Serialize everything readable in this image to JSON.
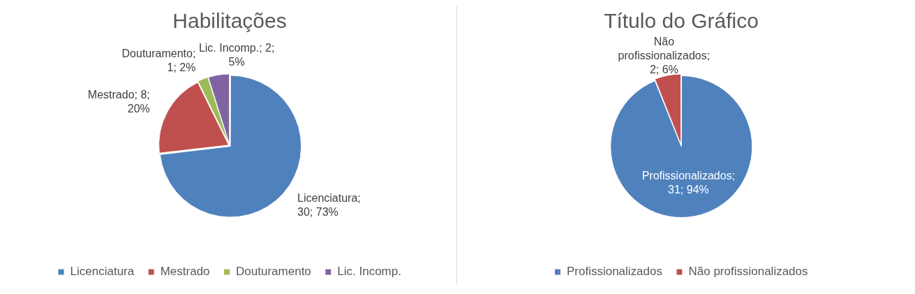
{
  "chart_data": [
    {
      "type": "pie",
      "title": "Habilitações",
      "categories": [
        "Licenciatura",
        "Mestrado",
        "Douturamento",
        "Lic. Incomp."
      ],
      "values": [
        30,
        8,
        1,
        2
      ],
      "colors": [
        "#4f81bd",
        "#c0504d",
        "#9bbb59",
        "#8064a2"
      ],
      "value_labels": [
        "Licenciatura; 30; 73%",
        "Mestrado; 8; 20%",
        "Douturamento; 1; 2%",
        "Lic. Incomp.; 2; 5%"
      ],
      "legend": "bottom"
    },
    {
      "type": "pie",
      "title": "Título do Gráfico",
      "categories": [
        "Profissionalizados",
        "Não profissionalizados"
      ],
      "values": [
        31,
        2
      ],
      "colors": [
        "#4f81bd",
        "#c0504d"
      ],
      "value_labels": [
        "Profissionalizados; 31; 94%",
        "Não profissionalizados; 2; 6%"
      ],
      "legend": "bottom"
    }
  ]
}
